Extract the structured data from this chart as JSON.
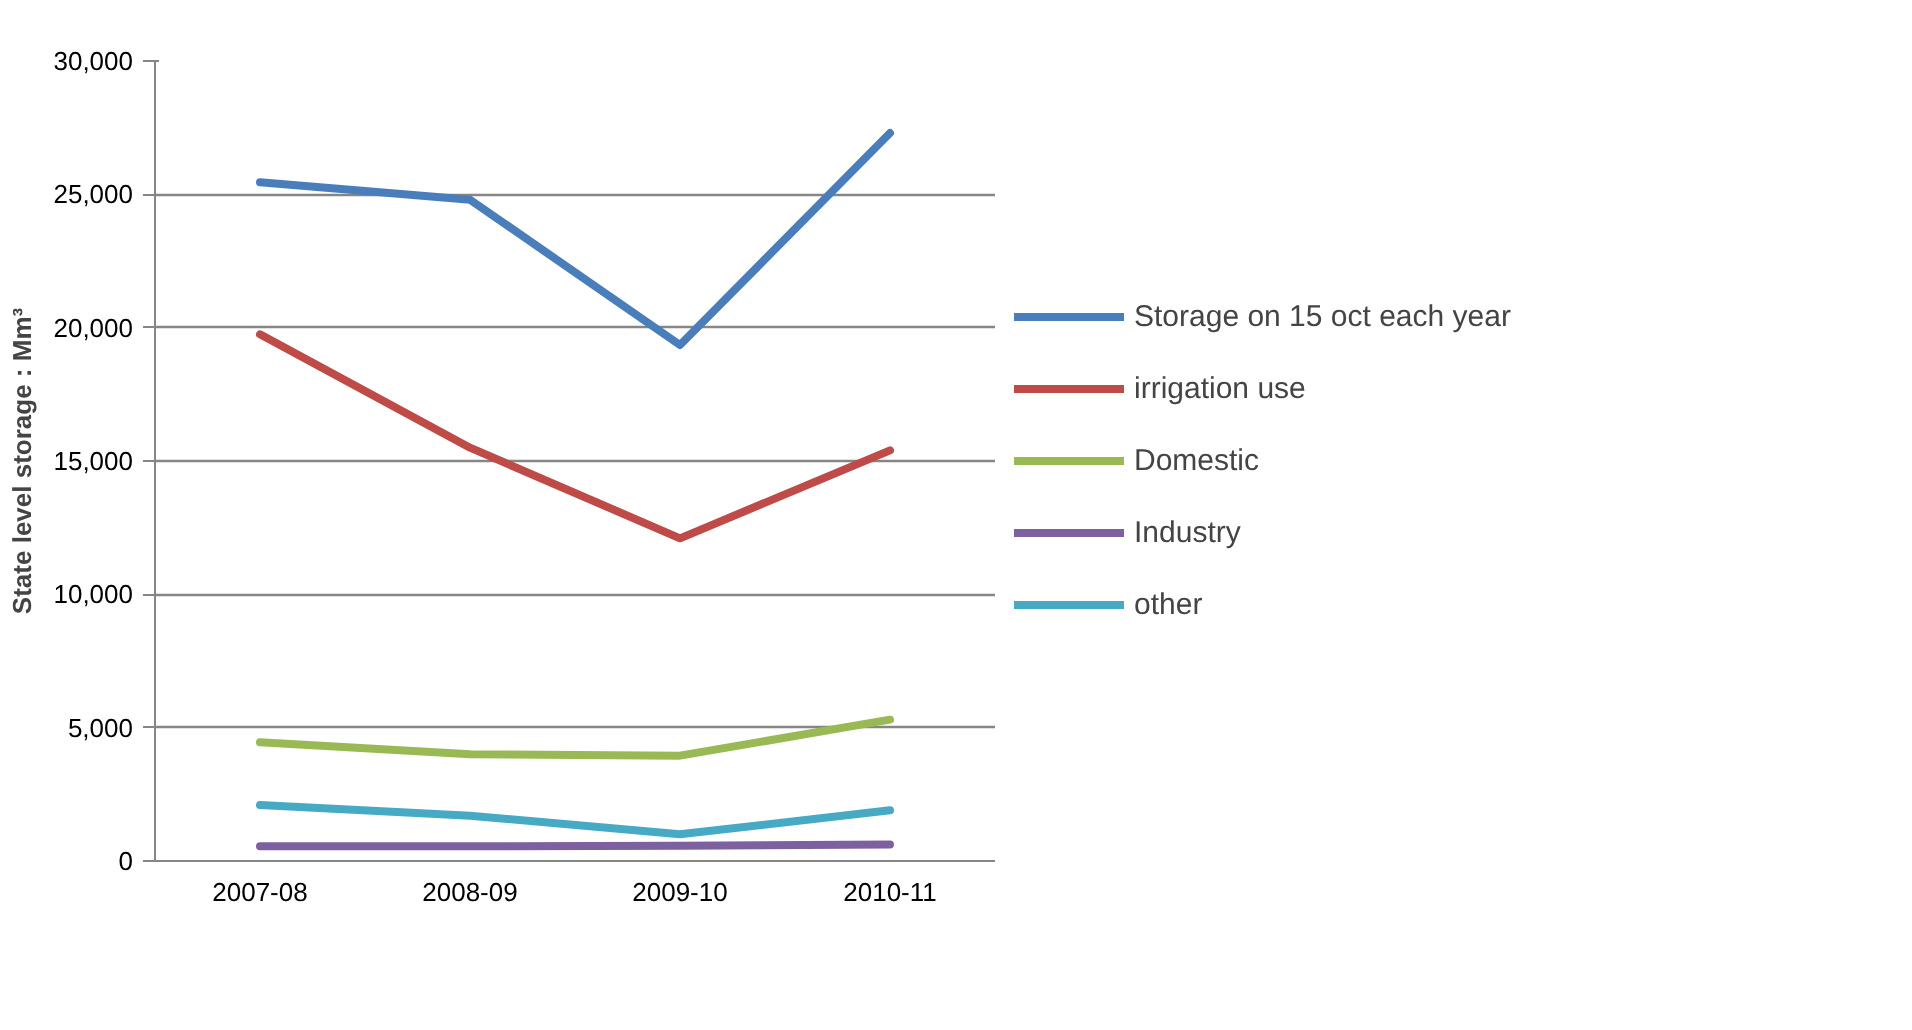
{
  "chart_data": {
    "type": "line",
    "ylabel": "State level storage : Mm³",
    "categories": [
      "2007-08",
      "2008-09",
      "2009-10",
      "2010-11"
    ],
    "series": [
      {
        "name": "Storage on 15 oct each year",
        "color": "#4a7ebb",
        "values": [
          25450,
          24800,
          19350,
          27300
        ]
      },
      {
        "name": "irrigation use",
        "color": "#be4b48",
        "values": [
          19750,
          15500,
          12100,
          15400
        ]
      },
      {
        "name": "Domestic",
        "color": "#98b954",
        "values": [
          4450,
          4000,
          3950,
          5300
        ]
      },
      {
        "name": "Industry",
        "color": "#7d60a0",
        "values": [
          550,
          550,
          570,
          620
        ]
      },
      {
        "name": "other",
        "color": "#46aac5",
        "values": [
          2100,
          1700,
          1000,
          1900
        ]
      }
    ],
    "ylim": [
      0,
      30000
    ],
    "yticks": [
      {
        "value": 0,
        "label": "0"
      },
      {
        "value": 5000,
        "label": "5,000"
      },
      {
        "value": 10000,
        "label": "10,000"
      },
      {
        "value": 15000,
        "label": "15,000"
      },
      {
        "value": 20000,
        "label": "20,000"
      },
      {
        "value": 25000,
        "label": "25,000"
      },
      {
        "value": 30000,
        "label": "30,000"
      }
    ],
    "grid": "y",
    "legend": "right",
    "marker": "none",
    "line_style": "solid"
  }
}
